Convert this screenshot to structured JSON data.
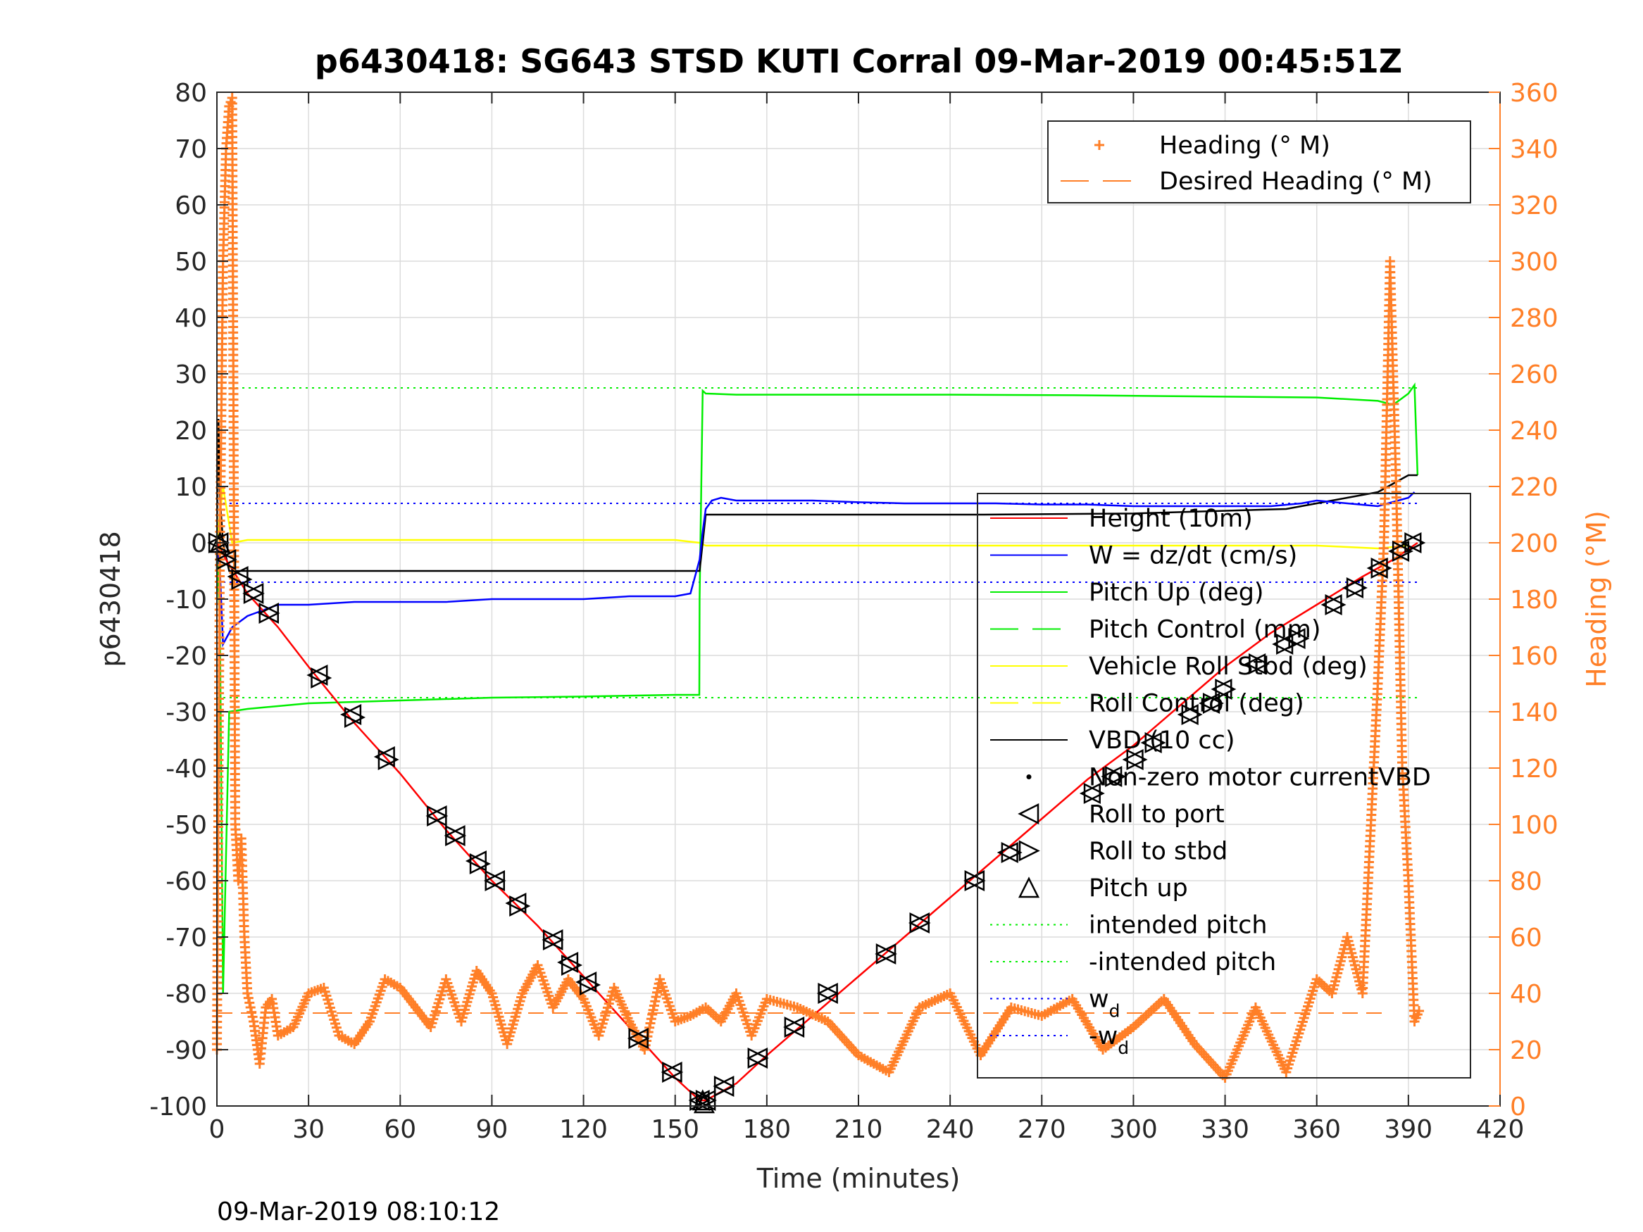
{
  "chart_data": {
    "type": "line",
    "title": "p6430418: SG643 STSD KUTI Corral 09-Mar-2019 00:45:51Z",
    "xlabel": "Time (minutes)",
    "ylabel_left": "p6430418",
    "ylabel_right": "Heading (°M)",
    "timestamp": "09-Mar-2019 08:10:12",
    "xlim": [
      0,
      420
    ],
    "ylim_left": [
      -100,
      80
    ],
    "ylim_right": [
      0,
      360
    ],
    "xticks": [
      0,
      30,
      60,
      90,
      120,
      150,
      180,
      210,
      240,
      270,
      300,
      330,
      360,
      390,
      420
    ],
    "yticks_left": [
      -100,
      -90,
      -80,
      -70,
      -60,
      -50,
      -40,
      -30,
      -20,
      -10,
      0,
      10,
      20,
      30,
      40,
      50,
      60,
      70,
      80
    ],
    "yticks_right": [
      0,
      20,
      40,
      60,
      80,
      100,
      120,
      140,
      160,
      180,
      200,
      220,
      240,
      260,
      280,
      300,
      320,
      340,
      360
    ],
    "grid": true,
    "colors": {
      "height": "#ff0000",
      "w": "#0000ff",
      "pitch": "#00ee00",
      "roll": "#ffff00",
      "vbd": "#000000",
      "heading": "#ff7f27",
      "right_axis": "#ff7f27"
    },
    "legend_heading": [
      {
        "label": "Heading (° M)",
        "marker": "plus",
        "color": "#ff7f27"
      },
      {
        "label": "Desired Heading (° M)",
        "marker": "dash",
        "color": "#ff7f27"
      }
    ],
    "legend_heading_placement": "top-right",
    "legend_main": [
      {
        "label": "Height (10m)",
        "style": "line",
        "color": "#ff0000"
      },
      {
        "label": "W = dz/dt (cm/s)",
        "style": "line",
        "color": "#0000ff"
      },
      {
        "label": "Pitch Up (deg)",
        "style": "line",
        "color": "#00ee00"
      },
      {
        "label": "Pitch Control (mm)",
        "style": "dash",
        "color": "#00ee00"
      },
      {
        "label": "Vehicle Roll Stbd (deg)",
        "style": "line",
        "color": "#ffff00"
      },
      {
        "label": "Roll Control (deg)",
        "style": "dash",
        "color": "#ffff00"
      },
      {
        "label": "VBD (10 cc)",
        "style": "line",
        "color": "#000000"
      },
      {
        "label": "Non-zero motor currentVBD",
        "style": "dot",
        "color": "#000000"
      },
      {
        "label": "Roll to port",
        "style": "tri-left",
        "color": "#000000"
      },
      {
        "label": "Roll to stbd",
        "style": "tri-right",
        "color": "#000000"
      },
      {
        "label": "Pitch up",
        "style": "tri-up",
        "color": "#000000"
      },
      {
        "label": "intended pitch",
        "style": "dotted",
        "color": "#00ee00"
      },
      {
        "label": "-intended pitch",
        "style": "dotted",
        "color": "#00ee00"
      },
      {
        "label": "w",
        "sub": "d",
        "style": "dotted",
        "color": "#0000ff"
      },
      {
        "label": "-w",
        "sub": "d",
        "style": "dotted",
        "color": "#0000ff"
      }
    ],
    "legend_main_placement": "bottom-right",
    "series": [
      {
        "name": "Height (10m)",
        "axis": "left",
        "x": [
          0,
          3,
          10,
          20,
          30,
          45,
          60,
          75,
          90,
          105,
          120,
          135,
          150,
          158,
          160,
          170,
          180,
          195,
          210,
          225,
          240,
          255,
          270,
          285,
          300,
          315,
          330,
          345,
          360,
          375,
          385,
          393
        ],
        "y": [
          0,
          -3,
          -9,
          -15,
          -22,
          -32,
          -41,
          -51,
          -60,
          -68,
          -77,
          -86,
          -95,
          -99,
          -99,
          -96,
          -91,
          -84,
          -77,
          -70,
          -63,
          -56,
          -49,
          -42,
          -36,
          -29,
          -22,
          -16,
          -11,
          -6,
          -3,
          0
        ]
      },
      {
        "name": "W = dz/dt (cm/s)",
        "axis": "left",
        "x": [
          0,
          1,
          2,
          5,
          10,
          15,
          20,
          30,
          45,
          60,
          75,
          90,
          105,
          120,
          135,
          150,
          155,
          158,
          159,
          160,
          162,
          165,
          170,
          180,
          195,
          210,
          225,
          240,
          255,
          270,
          285,
          300,
          315,
          330,
          345,
          355,
          360,
          370,
          380,
          390,
          392
        ],
        "y": [
          0,
          -5,
          -18,
          -15,
          -13,
          -12,
          -11,
          -11,
          -10.5,
          -10.5,
          -10.5,
          -10,
          -10,
          -10,
          -9.5,
          -9.5,
          -9,
          -3,
          2,
          6,
          7.5,
          8,
          7.5,
          7.5,
          7.5,
          7.2,
          7,
          7,
          7,
          6.8,
          6.8,
          6.5,
          6.5,
          6.5,
          6.5,
          7,
          7.5,
          7,
          6.5,
          8,
          9
        ]
      },
      {
        "name": "Pitch Up (deg)",
        "axis": "left",
        "x": [
          0,
          1,
          2,
          4,
          10,
          20,
          30,
          60,
          90,
          120,
          150,
          157.9,
          158,
          159,
          160,
          170,
          200,
          240,
          280,
          320,
          360,
          380,
          385,
          390,
          392,
          393
        ],
        "y": [
          0,
          -15,
          -80,
          -30,
          -29.5,
          -29,
          -28.5,
          -28,
          -27.5,
          -27.3,
          -27,
          -27,
          -10,
          27,
          26.5,
          26.3,
          26.3,
          26.3,
          26.2,
          26,
          25.8,
          25.2,
          24.5,
          26.5,
          28,
          12
        ]
      },
      {
        "name": "Vehicle Roll Stbd (deg)",
        "axis": "left",
        "x": [
          0,
          2,
          5,
          10,
          30,
          60,
          90,
          120,
          150,
          158,
          160,
          200,
          240,
          280,
          320,
          360,
          380,
          390
        ],
        "y": [
          0,
          10,
          0,
          0.5,
          0.5,
          0.5,
          0.5,
          0.5,
          0.5,
          0,
          -0.5,
          -0.5,
          -0.5,
          -0.5,
          -0.5,
          -0.5,
          -1,
          -0.5
        ]
      },
      {
        "name": "VBD (10 cc)",
        "axis": "left",
        "x": [
          0,
          0.5,
          1,
          2,
          4,
          158,
          159,
          160,
          200,
          250,
          300,
          350,
          360,
          370,
          380,
          390,
          393
        ],
        "y": [
          0,
          22,
          8,
          0,
          -5,
          -5,
          0,
          5,
          5,
          5,
          5.2,
          6,
          7,
          8,
          9,
          12,
          12
        ]
      },
      {
        "name": "Heading (° M)",
        "axis": "right",
        "x": [
          0,
          1,
          2,
          3,
          4,
          5,
          6,
          7,
          8,
          9,
          10,
          12,
          14,
          16,
          18,
          20,
          25,
          30,
          35,
          40,
          45,
          50,
          55,
          60,
          65,
          70,
          75,
          80,
          85,
          90,
          95,
          100,
          105,
          110,
          115,
          120,
          125,
          130,
          135,
          140,
          145,
          150,
          155,
          160,
          165,
          170,
          175,
          180,
          190,
          200,
          210,
          220,
          230,
          240,
          250,
          260,
          270,
          280,
          290,
          300,
          310,
          320,
          330,
          340,
          350,
          360,
          365,
          370,
          375,
          380,
          382,
          384,
          386,
          388,
          390,
          392,
          394
        ],
        "y": [
          20,
          200,
          300,
          340,
          355,
          358,
          100,
          80,
          95,
          60,
          40,
          30,
          15,
          35,
          38,
          25,
          28,
          40,
          42,
          25,
          22,
          30,
          45,
          42,
          35,
          28,
          45,
          30,
          48,
          40,
          22,
          40,
          50,
          35,
          45,
          38,
          25,
          42,
          30,
          20,
          45,
          30,
          32,
          35,
          30,
          40,
          25,
          38,
          35,
          30,
          18,
          12,
          35,
          40,
          18,
          35,
          32,
          38,
          20,
          28,
          38,
          22,
          10,
          35,
          12,
          45,
          40,
          60,
          40,
          150,
          200,
          300,
          220,
          120,
          80,
          30,
          35
        ]
      },
      {
        "name": "Desired Heading (° M)",
        "axis": "right",
        "x": [
          0,
          383
        ],
        "y": [
          33,
          33
        ]
      }
    ],
    "reference_lines": [
      {
        "name": "intended pitch",
        "axis": "left",
        "y": 27.5,
        "x": [
          0,
          393
        ],
        "style": "dotted",
        "color": "#00ee00"
      },
      {
        "name": "-intended pitch",
        "axis": "left",
        "y": -27.5,
        "x": [
          0,
          393
        ],
        "style": "dotted",
        "color": "#00ee00"
      },
      {
        "name": "w_d",
        "axis": "left",
        "y": 7,
        "x": [
          0,
          393
        ],
        "style": "dotted",
        "color": "#0000ff"
      },
      {
        "name": "-w_d",
        "axis": "left",
        "y": -7,
        "x": [
          0,
          393
        ],
        "style": "dotted",
        "color": "#0000ff"
      }
    ],
    "markers": {
      "roll_to_port": [
        [
          0.5,
          0
        ],
        [
          3,
          -3
        ],
        [
          7,
          -6
        ],
        [
          12,
          -9
        ],
        [
          17,
          -12.5
        ],
        [
          33,
          -23.5
        ],
        [
          44,
          -30.5
        ],
        [
          55,
          -38
        ],
        [
          72,
          -48.5
        ],
        [
          78,
          -52
        ],
        [
          85,
          -56.5
        ],
        [
          91,
          -60
        ],
        [
          98,
          -64
        ],
        [
          110,
          -70.5
        ],
        [
          115,
          -74.5
        ],
        [
          121,
          -78
        ],
        [
          138,
          -88
        ],
        [
          149,
          -94
        ],
        [
          158,
          -99
        ],
        [
          160,
          -99
        ],
        [
          166,
          -96.5
        ],
        [
          177,
          -91.5
        ],
        [
          189,
          -86
        ],
        [
          200,
          -80
        ],
        [
          219,
          -73
        ],
        [
          230,
          -67.5
        ],
        [
          248,
          -60
        ],
        [
          259,
          -55
        ],
        [
          286,
          -44.5
        ],
        [
          293,
          -41.5
        ],
        [
          300,
          -38.5
        ],
        [
          306,
          -35.5
        ],
        [
          318,
          -30.5
        ],
        [
          325,
          -28.5
        ],
        [
          329,
          -26
        ],
        [
          340,
          -21.5
        ],
        [
          349,
          -18
        ],
        [
          353,
          -17
        ],
        [
          365,
          -11
        ],
        [
          372,
          -8
        ],
        [
          380,
          -4.5
        ],
        [
          387,
          -1.5
        ],
        [
          391,
          0
        ]
      ],
      "roll_to_stbd": [
        [
          0.5,
          0
        ],
        [
          3,
          -3
        ],
        [
          8,
          -6.5
        ],
        [
          12,
          -9
        ],
        [
          17,
          -12.5
        ],
        [
          34,
          -24
        ],
        [
          45,
          -31
        ],
        [
          56,
          -38.5
        ],
        [
          72,
          -48.5
        ],
        [
          78,
          -52
        ],
        [
          86,
          -57
        ],
        [
          91,
          -60
        ],
        [
          99,
          -64.5
        ],
        [
          110,
          -70.5
        ],
        [
          116,
          -75
        ],
        [
          122,
          -78.5
        ],
        [
          138,
          -88
        ],
        [
          149,
          -94
        ],
        [
          158,
          -99
        ],
        [
          160,
          -99
        ],
        [
          166,
          -96.5
        ],
        [
          177,
          -91.5
        ],
        [
          189,
          -86
        ],
        [
          200,
          -80
        ],
        [
          219,
          -73
        ],
        [
          230,
          -67.5
        ],
        [
          248,
          -60
        ],
        [
          260,
          -55
        ],
        [
          287,
          -44.5
        ],
        [
          294,
          -41.5
        ],
        [
          301,
          -38.5
        ],
        [
          307,
          -35.5
        ],
        [
          319,
          -30.5
        ],
        [
          326,
          -28.5
        ],
        [
          330,
          -26
        ],
        [
          341,
          -21.5
        ],
        [
          350,
          -18
        ],
        [
          354,
          -17
        ],
        [
          366,
          -11
        ],
        [
          373,
          -8
        ],
        [
          381,
          -4.5
        ],
        [
          388,
          -1.5
        ],
        [
          392,
          0
        ]
      ],
      "pitch_up": [
        [
          1,
          0
        ],
        [
          159,
          -99
        ],
        [
          159.5,
          -99.5
        ]
      ]
    }
  }
}
